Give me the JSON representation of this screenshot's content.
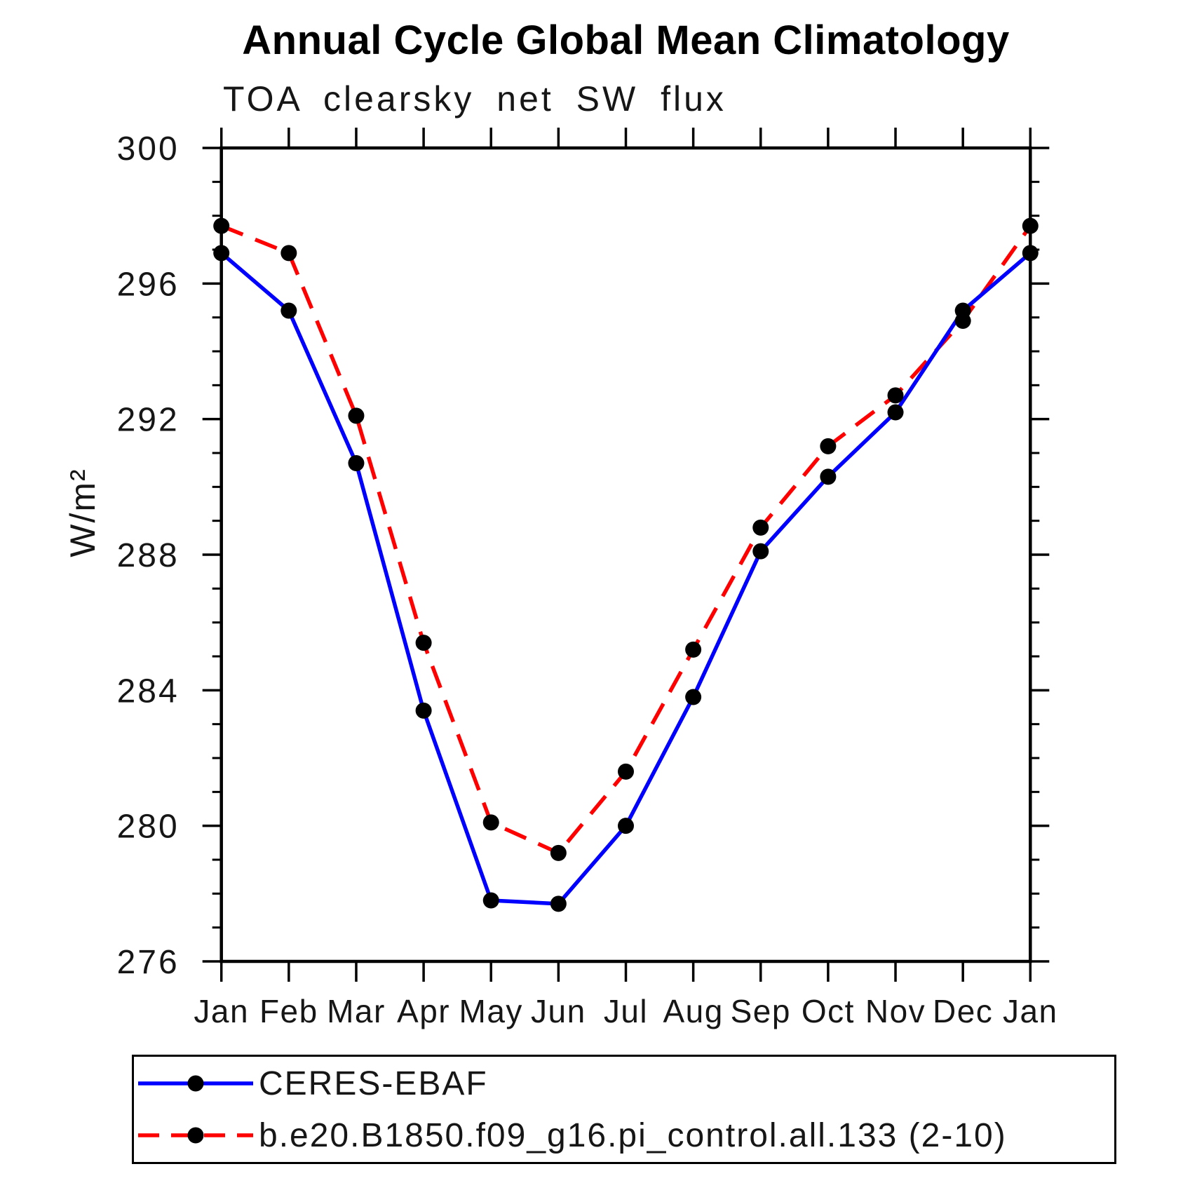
{
  "title": "Annual Cycle Global Mean Climatology",
  "subtitle": "TOA clearsky net SW flux",
  "chart_data": {
    "type": "line",
    "categories": [
      "Jan",
      "Feb",
      "Mar",
      "Apr",
      "May",
      "Jun",
      "Jul",
      "Aug",
      "Sep",
      "Oct",
      "Nov",
      "Dec",
      "Jan"
    ],
    "xlabel": "",
    "ylabel": "W/m²",
    "ylim": [
      276,
      300
    ],
    "yticks": [
      276,
      280,
      284,
      288,
      292,
      296,
      300
    ],
    "ytick_major_step": 4,
    "ytick_minor_step": 1,
    "grid": false,
    "legend_position": "bottom-left-box",
    "marker_color": "#000000",
    "series": [
      {
        "name": "CERES-EBAF",
        "color": "#0000ff",
        "style": "solid",
        "marker": "circle",
        "values": [
          296.9,
          295.2,
          290.7,
          283.4,
          277.8,
          277.7,
          280.0,
          283.8,
          288.1,
          290.3,
          292.2,
          295.2,
          296.9
        ]
      },
      {
        "name": "b.e20.B1850.f09_g16.pi_control.all.133 (2-10)",
        "color": "#ff0000",
        "style": "dashed",
        "marker": "circle",
        "values": [
          297.7,
          296.9,
          292.1,
          285.4,
          280.1,
          279.2,
          281.6,
          285.2,
          288.8,
          291.2,
          292.7,
          294.9,
          297.7
        ]
      }
    ]
  }
}
